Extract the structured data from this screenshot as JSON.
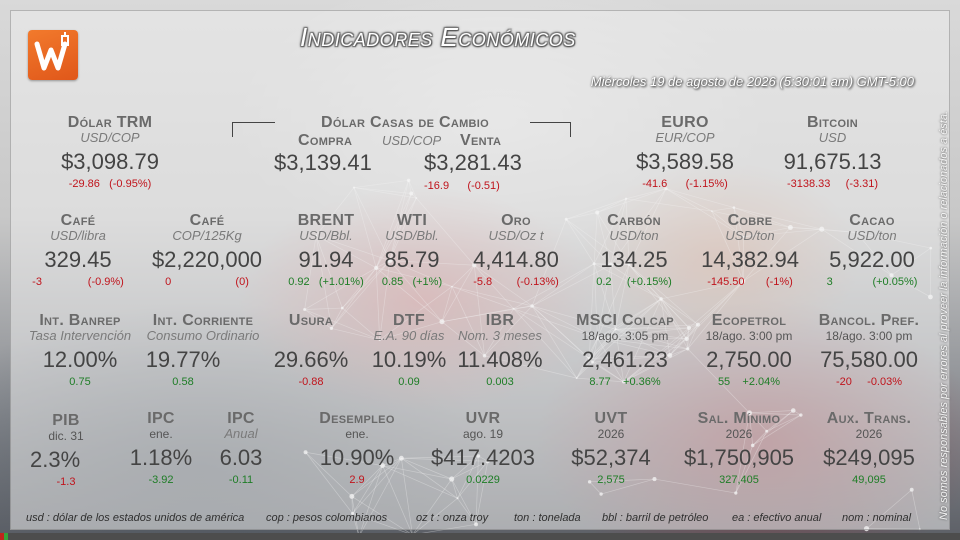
{
  "header": {
    "title": "Indicadores Económicos",
    "date": "Miércoles 19 de agosto de 2026 (5:30:01 am) GMT-5:00",
    "disclaimer": "No somos responsables por errores al proveer la información o relacionados a ésta."
  },
  "colors": {
    "negative": "#c0141c",
    "positive": "#1e7d26",
    "logo": "#e8641f"
  },
  "row1": {
    "trm": {
      "name": "Dólar TRM",
      "unit": "USD/COP",
      "value": "$3,098.79",
      "abs": "-29.86",
      "pct": "(-0.95%)"
    },
    "casas": {
      "name": "Dólar Casas de Cambio",
      "unit": "USD/COP",
      "compra": {
        "label": "Compra",
        "value": "$3,139.41"
      },
      "venta": {
        "label": "Venta",
        "value": "$3,281.43",
        "abs": "-16.9",
        "pct": "(-0.51)"
      }
    },
    "euro": {
      "name": "EURO",
      "unit": "EUR/COP",
      "value": "$3,589.58",
      "abs": "-41.6",
      "pct": "(-1.15%)"
    },
    "bitcoin": {
      "name": "Bitcoin",
      "unit": "USD",
      "value": "91,675.13",
      "abs": "-3138.33",
      "pct": "(-3.31)"
    }
  },
  "row2": {
    "cafe_usd": {
      "name": "Café",
      "unit": "USD/libra",
      "value": "329.45",
      "abs": "-3",
      "pct": "(-0.9%)"
    },
    "cafe_cop": {
      "name": "Café",
      "unit": "COP/125Kg",
      "value": "$2,220,000",
      "abs": "0",
      "pct": "(0)"
    },
    "brent": {
      "name": "BRENT",
      "unit": "USD/Bbl.",
      "value": "91.94",
      "abs": "0.92",
      "pct": "(+1.01%)"
    },
    "wti": {
      "name": "WTI",
      "unit": "USD/Bbl.",
      "value": "85.79",
      "abs": "0.85",
      "pct": "(+1%)"
    },
    "oro": {
      "name": "Oro",
      "unit": "USD/Oz t",
      "value": "4,414.80",
      "abs": "-5.8",
      "pct": "(-0.13%)"
    },
    "carbon": {
      "name": "Carbón",
      "unit": "USD/ton",
      "value": "134.25",
      "abs": "0.2",
      "pct": "(+0.15%)"
    },
    "cobre": {
      "name": "Cobre",
      "unit": "USD/ton",
      "value": "14,382.94",
      "abs": "-145.50",
      "pct": "(-1%)"
    },
    "cacao": {
      "name": "Cacao",
      "unit": "USD/ton",
      "value": "5,922.00",
      "abs": "3",
      "pct": "(+0.05%)"
    }
  },
  "row3": {
    "banrep": {
      "name": "Int. Banrep",
      "sub": "Tasa Intervención",
      "value": "12.00%",
      "chg": "0.75"
    },
    "corriente": {
      "name": "Int. Corriente",
      "sub": "Consumo Ordinario",
      "value": "19.77%",
      "chg": "0.58"
    },
    "usura": {
      "name": "Usura",
      "value": "29.66%",
      "chg": "-0.88"
    },
    "dtf": {
      "name": "DTF",
      "sub": "E.A. 90 días",
      "value": "10.19%",
      "chg": "0.09"
    },
    "ibr": {
      "name": "IBR",
      "sub": "Nom. 3 meses",
      "value": "11.408%",
      "chg": "0.003"
    },
    "msci": {
      "name": "MSCI Colcap",
      "sub": "18/ago. 3:05 pm",
      "value": "2,461.23",
      "abs": "8.77",
      "pct": "+0.36%"
    },
    "ecopetrol": {
      "name": "Ecopetrol",
      "sub": "18/ago. 3:00 pm",
      "value": "2,750.00",
      "abs": "55",
      "pct": "+2.04%"
    },
    "bancol": {
      "name": "Bancol. Pref.",
      "sub": "18/ago. 3:00 pm",
      "value": "75,580.00",
      "abs": "-20",
      "pct": "-0.03%"
    }
  },
  "row4": {
    "pib": {
      "name": "PIB",
      "sub": "dic. 31",
      "value": "2.3%",
      "chg": "-1.3"
    },
    "ipc": {
      "name": "IPC",
      "sub": "ene.",
      "value": "1.18%",
      "chg": "-3.92"
    },
    "ipc_anual": {
      "name": "IPC",
      "sub": "Anual",
      "value": "6.03",
      "chg": "-0.11"
    },
    "desempleo": {
      "name": "Desempleo",
      "sub": "ene.",
      "value": "10.90%",
      "chg": "2.9"
    },
    "uvr": {
      "name": "UVR",
      "sub": "ago. 19",
      "value": "$417.4203",
      "chg": "0.0229"
    },
    "uvt": {
      "name": "UVT",
      "sub": "2026",
      "value": "$52,374",
      "chg": "2,575"
    },
    "salmin": {
      "name": "Sal. Mínimo",
      "sub": "2026",
      "value": "$1,750,905",
      "chg": "327,405"
    },
    "auxtrans": {
      "name": "Aux. Trans.",
      "sub": "2026",
      "value": "$249,095",
      "chg": "49,095"
    }
  },
  "legend": [
    "usd : dólar de los estados unidos de américa",
    "cop : pesos colombianos",
    "oz t : onza troy",
    "ton : tonelada",
    "bbl : barril de petróleo",
    "ea : efectivo anual",
    "nom : nominal"
  ]
}
